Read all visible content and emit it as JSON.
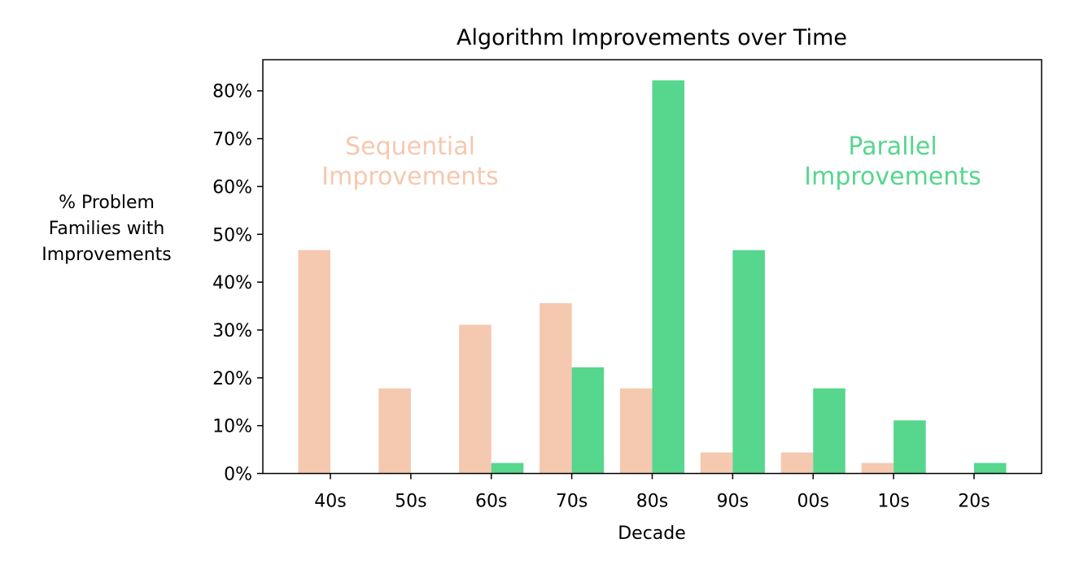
{
  "chart_data": {
    "type": "bar",
    "title": "Algorithm Improvements over Time",
    "xlabel": "Decade",
    "ylabel_lines": [
      "% Problem",
      "Families with",
      "Improvements"
    ],
    "categories": [
      "40s",
      "50s",
      "60s",
      "70s",
      "80s",
      "90s",
      "00s",
      "10s",
      "20s"
    ],
    "series": [
      {
        "label_lines": [
          "Sequential",
          "Improvements"
        ],
        "color": "#f5c8b0",
        "values": [
          46.7,
          17.8,
          31.1,
          35.6,
          17.8,
          4.4,
          4.4,
          2.2,
          0.0
        ]
      },
      {
        "label_lines": [
          "Parallel",
          "Improvements"
        ],
        "color": "#57d68d",
        "values": [
          0.0,
          0.0,
          2.2,
          22.2,
          82.2,
          46.7,
          17.8,
          11.1,
          2.2
        ]
      }
    ],
    "ylim": [
      0,
      86.5
    ],
    "yticks": [
      0,
      10,
      20,
      30,
      40,
      50,
      60,
      70,
      80
    ],
    "ytick_suffix": "%",
    "grid": false
  }
}
